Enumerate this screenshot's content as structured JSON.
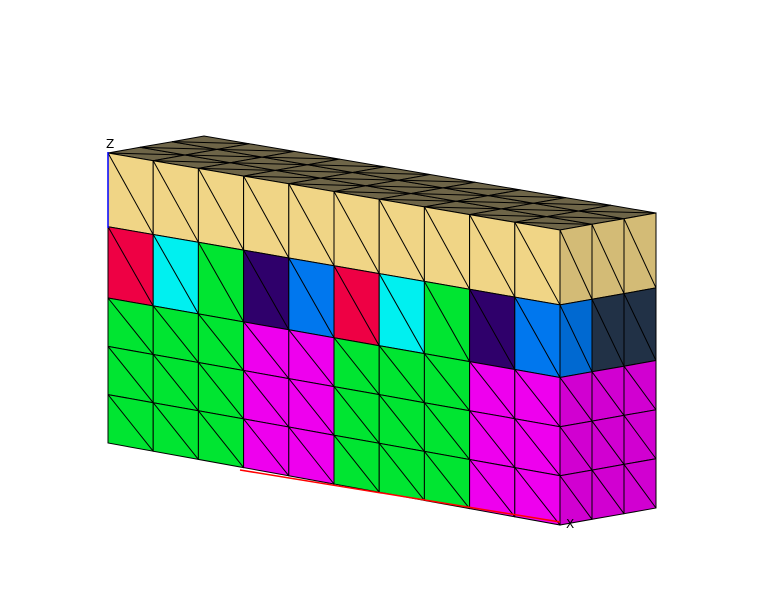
{
  "axes": {
    "z_label": "Z",
    "x_label": "X"
  },
  "mesh": {
    "grid": {
      "columns": 10,
      "rows": 4,
      "top_rows": 1,
      "depth_layers": 3
    },
    "colors": {
      "tan": "#f0d586",
      "top": "#6e6548",
      "red": "#ee0044",
      "cyan": "#00f0f0",
      "green": "#00e531",
      "indigo": "#2f006b",
      "blue": "#0077ee",
      "magenta": "#ee00ee",
      "dark_slate": "#25384f",
      "line": "#000000"
    },
    "front_layout": [
      [
        "tan",
        "tan",
        "tan",
        "tan",
        "tan",
        "tan",
        "tan",
        "tan",
        "tan",
        "tan"
      ],
      [
        "red",
        "cyan",
        "green",
        "indigo",
        "blue",
        "red",
        "cyan",
        "green",
        "indigo",
        "blue"
      ],
      [
        "green",
        "green",
        "green",
        "magenta",
        "magenta",
        "green",
        "green",
        "green",
        "magenta",
        "magenta"
      ],
      [
        "green",
        "green",
        "green",
        "magenta",
        "magenta",
        "green",
        "green",
        "green",
        "magenta",
        "magenta"
      ],
      [
        "green",
        "green",
        "green",
        "magenta",
        "magenta",
        "green",
        "green",
        "green",
        "magenta",
        "magenta"
      ]
    ],
    "side_layout": [
      [
        "tan",
        "tan",
        "tan"
      ],
      [
        "blue",
        "dark_slate",
        "dark_slate"
      ],
      [
        "magenta",
        "magenta",
        "magenta"
      ],
      [
        "magenta",
        "magenta",
        "magenta"
      ],
      [
        "magenta",
        "magenta",
        "magenta"
      ]
    ]
  }
}
